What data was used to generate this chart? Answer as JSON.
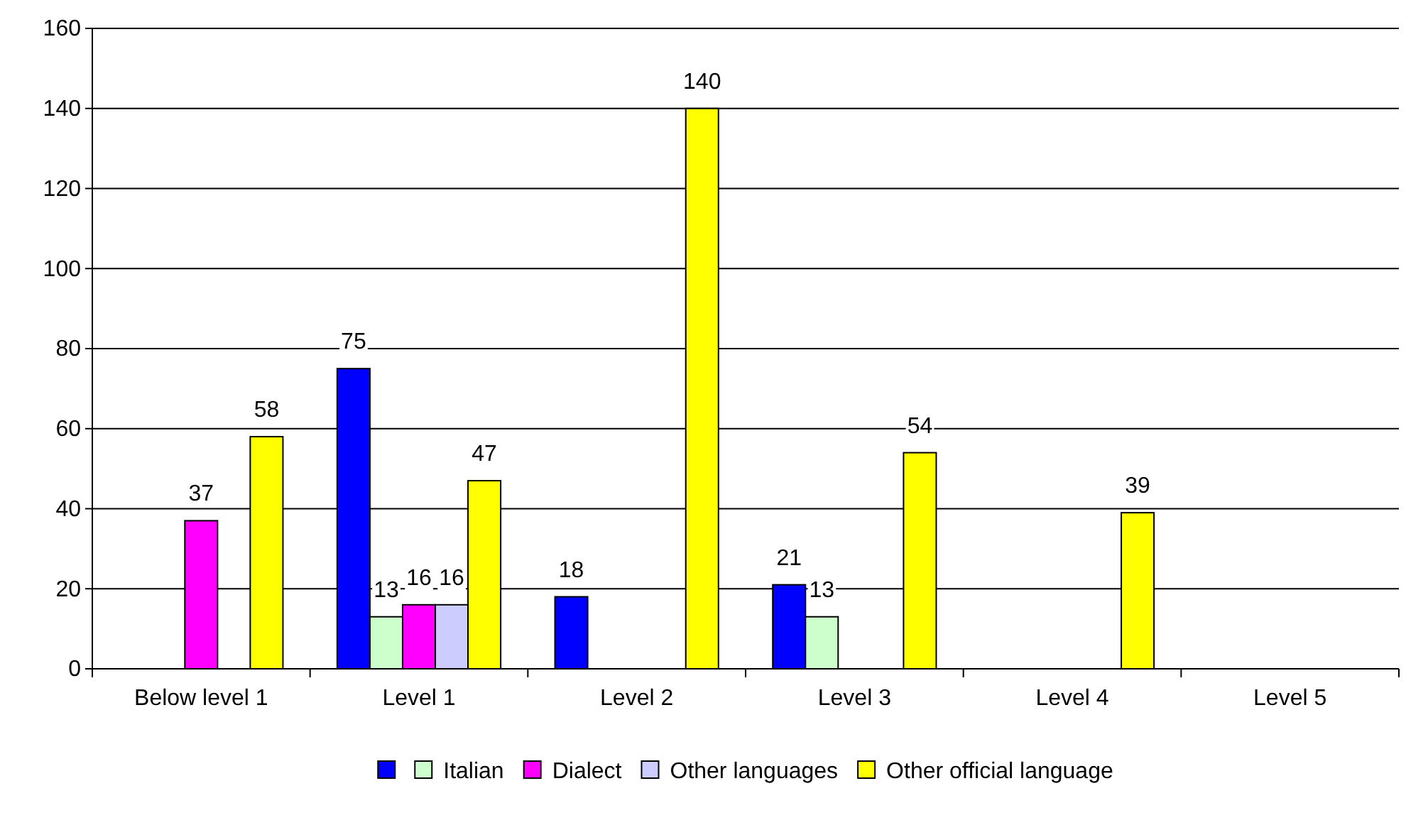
{
  "chart_data": {
    "type": "bar",
    "categories": [
      "Below  level 1",
      "Level 1",
      "Level 2",
      "Level 3",
      "Level 4",
      "Level 5"
    ],
    "series": [
      {
        "color": "#0000ff",
        "values": [
          null,
          75,
          18,
          21,
          null,
          null
        ]
      },
      {
        "name": "Italian",
        "color": "#ccffcc",
        "values": [
          null,
          13,
          null,
          13,
          null,
          null
        ]
      },
      {
        "name": "Dialect",
        "color": "#ff00ff",
        "values": [
          37,
          16,
          null,
          null,
          null,
          null
        ]
      },
      {
        "name": "Other languages",
        "color": "#ccccff",
        "values": [
          null,
          16,
          null,
          null,
          null,
          null
        ]
      },
      {
        "name": "Other official language",
        "color": "#ffff00",
        "values": [
          58,
          47,
          140,
          54,
          39,
          null
        ]
      }
    ],
    "ylim": [
      0,
      160
    ],
    "yticks": [
      0,
      20,
      40,
      60,
      80,
      100,
      120,
      140,
      160
    ],
    "grid": "y",
    "legend": "bottom",
    "data_labels": true
  }
}
